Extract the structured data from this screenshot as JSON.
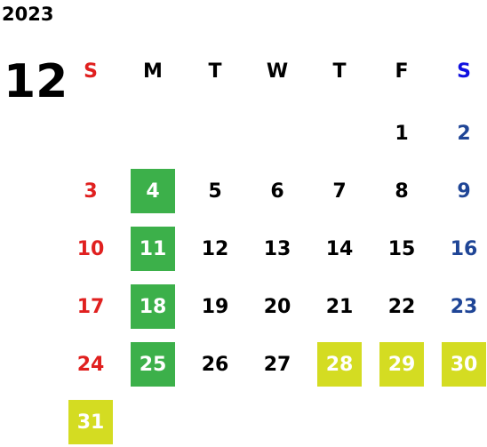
{
  "year": "2023",
  "month": "12",
  "weekdays": [
    "S",
    "M",
    "T",
    "W",
    "T",
    "F",
    "S"
  ],
  "weekday_colors": [
    "#e0201f",
    "#000000",
    "#000000",
    "#000000",
    "#000000",
    "#000000",
    "#1010e0"
  ],
  "day_colors": [
    "#e0201f",
    "#000000",
    "#000000",
    "#000000",
    "#000000",
    "#000000",
    "#1f4596"
  ],
  "filled_text_color": "#ffffff",
  "weeks": [
    [
      null,
      null,
      null,
      null,
      null,
      {
        "day": "1"
      },
      {
        "day": "2"
      }
    ],
    [
      {
        "day": "3"
      },
      {
        "day": "4",
        "fill": "#3cb04a"
      },
      {
        "day": "5"
      },
      {
        "day": "6"
      },
      {
        "day": "7"
      },
      {
        "day": "8"
      },
      {
        "day": "9"
      }
    ],
    [
      {
        "day": "10"
      },
      {
        "day": "11",
        "fill": "#3cb04a"
      },
      {
        "day": "12"
      },
      {
        "day": "13"
      },
      {
        "day": "14"
      },
      {
        "day": "15"
      },
      {
        "day": "16"
      }
    ],
    [
      {
        "day": "17"
      },
      {
        "day": "18",
        "fill": "#3cb04a"
      },
      {
        "day": "19"
      },
      {
        "day": "20"
      },
      {
        "day": "21"
      },
      {
        "day": "22"
      },
      {
        "day": "23"
      }
    ],
    [
      {
        "day": "24"
      },
      {
        "day": "25",
        "fill": "#3cb04a"
      },
      {
        "day": "26"
      },
      {
        "day": "27"
      },
      {
        "day": "28",
        "fill": "#d4dc22"
      },
      {
        "day": "29",
        "fill": "#d4dc22"
      },
      {
        "day": "30",
        "fill": "#d4dc22"
      }
    ],
    [
      {
        "day": "31",
        "fill": "#d4dc22"
      }
    ]
  ]
}
